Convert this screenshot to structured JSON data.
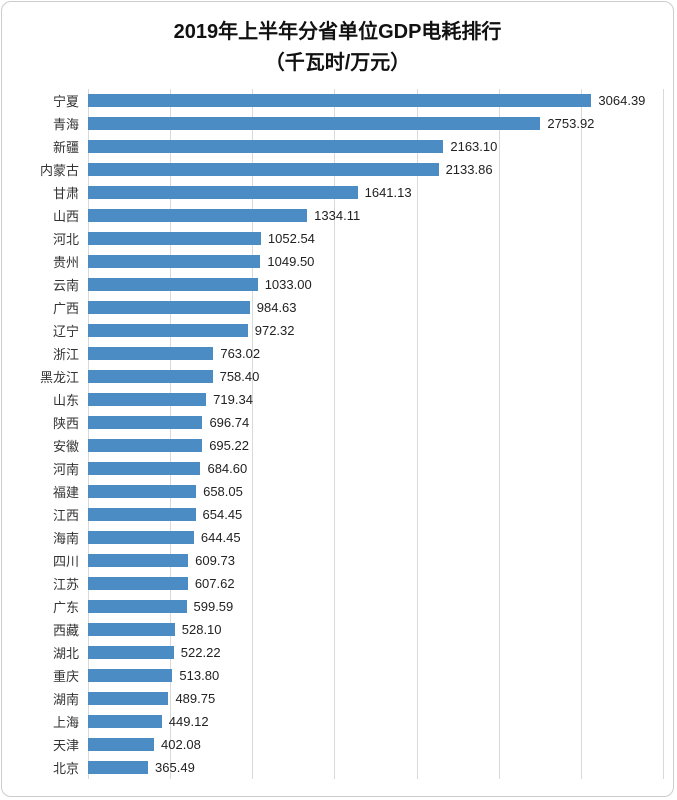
{
  "chart_data": {
    "type": "bar",
    "orientation": "horizontal",
    "title": "2019年上半年分省单位GDP电耗排行",
    "subtitle": "（千瓦时/万元）",
    "categories": [
      "宁夏",
      "青海",
      "新疆",
      "内蒙古",
      "甘肃",
      "山西",
      "河北",
      "贵州",
      "云南",
      "广西",
      "辽宁",
      "浙江",
      "黑龙江",
      "山东",
      "陕西",
      "安徽",
      "河南",
      "福建",
      "江西",
      "海南",
      "四川",
      "江苏",
      "广东",
      "西藏",
      "湖北",
      "重庆",
      "湖南",
      "上海",
      "天津",
      "北京"
    ],
    "values": [
      3064.39,
      2753.92,
      2163.1,
      2133.86,
      1641.13,
      1334.11,
      1052.54,
      1049.5,
      1033.0,
      984.63,
      972.32,
      763.02,
      758.4,
      719.34,
      696.74,
      695.22,
      684.6,
      658.05,
      654.45,
      644.45,
      609.73,
      607.62,
      599.59,
      528.1,
      522.22,
      513.8,
      489.75,
      449.12,
      402.08,
      365.49
    ],
    "value_labels": [
      "3064.39",
      "2753.92",
      "2163.10",
      "2133.86",
      "1641.13",
      "1334.11",
      "1052.54",
      "1049.50",
      "1033.00",
      "984.63",
      "972.32",
      "763.02",
      "758.40",
      "719.34",
      "696.74",
      "695.22",
      "684.60",
      "658.05",
      "654.45",
      "644.45",
      "609.73",
      "607.62",
      "599.59",
      "528.10",
      "522.22",
      "513.80",
      "489.75",
      "449.12",
      "402.08",
      "365.49"
    ],
    "xlim": [
      0,
      3500
    ],
    "x_tick_interval": 500,
    "grid": true,
    "legend": "none",
    "bar_color": "#4b8cc4",
    "gridline_color": "#d9d9d9",
    "title_color": "#111111",
    "label_color": "#333333"
  }
}
